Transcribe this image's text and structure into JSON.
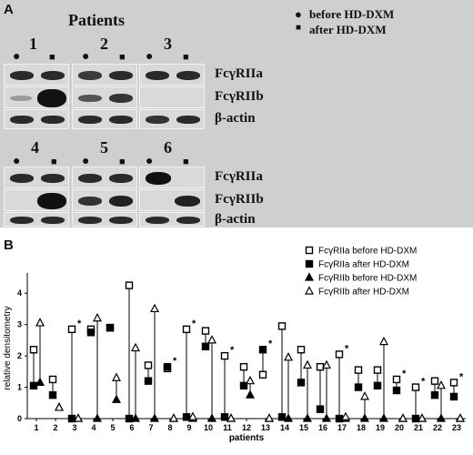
{
  "panelA": {
    "letter": "A",
    "title": "Patients",
    "legend_before": "before HD-DXM",
    "legend_after": "after HD-DXM",
    "groups": [
      "1",
      "2",
      "3",
      "4",
      "5",
      "6"
    ],
    "row_labels_top": [
      "FcγRIIa",
      "FcγRIIb",
      "β-actin"
    ],
    "row_labels_bottom": [
      "FcγRIIa",
      "FcγRIIb",
      "β-actin"
    ]
  },
  "panelB": {
    "letter": "B"
  },
  "chart_data": {
    "type": "scatter",
    "title": "",
    "xlabel": "patients",
    "ylabel": "relative densitometry",
    "categories": [
      "1",
      "2",
      "3",
      "4",
      "5",
      "6",
      "7",
      "8",
      "9",
      "10",
      "11",
      "12",
      "13",
      "14",
      "15",
      "16",
      "17",
      "18",
      "19",
      "20",
      "21",
      "22",
      "23"
    ],
    "ylim": [
      0,
      4.5
    ],
    "yticks": [
      0,
      1,
      2,
      3,
      4
    ],
    "grid": false,
    "legend_position": "top-right",
    "series": [
      {
        "name": "FcγRIIa before HD-DXM",
        "marker": "open-square",
        "values": [
          2.2,
          1.25,
          2.85,
          2.85,
          2.9,
          4.25,
          1.7,
          1.6,
          2.85,
          2.8,
          2.0,
          1.65,
          1.4,
          2.95,
          2.2,
          1.65,
          2.05,
          1.55,
          1.55,
          1.25,
          1.0,
          1.2,
          1.15
        ]
      },
      {
        "name": "FcγRIIa after HD-DXM",
        "marker": "filled-square",
        "values": [
          1.05,
          0.75,
          0.0,
          2.75,
          2.9,
          0.0,
          1.2,
          1.65,
          0.05,
          2.3,
          0.05,
          1.05,
          2.2,
          0.05,
          1.15,
          0.3,
          0.0,
          1.0,
          1.05,
          0.9,
          0.0,
          0.75,
          0.7
        ]
      },
      {
        "name": "FcγRIIb before HD-DXM",
        "marker": "filled-triangle",
        "values": [
          1.15,
          0.35,
          0.0,
          0.0,
          0.6,
          0.0,
          0.0,
          0.0,
          0.0,
          0.0,
          0.0,
          0.75,
          0.0,
          0.0,
          0.0,
          0.0,
          0.0,
          0.0,
          0.0,
          0.0,
          0.0,
          0.0,
          0.0
        ]
      },
      {
        "name": "FcγRIIb after HD-DXM",
        "marker": "open-triangle",
        "values": [
          3.05,
          0.35,
          0.0,
          3.2,
          1.3,
          2.25,
          3.5,
          0.0,
          0.05,
          2.5,
          0.0,
          1.2,
          0.0,
          1.95,
          1.7,
          1.7,
          0.05,
          0.7,
          2.45,
          0.0,
          0.0,
          1.05,
          0.0
        ]
      }
    ],
    "significance_marker": "*",
    "significant_patients": [
      "3",
      "8",
      "9",
      "11",
      "13",
      "17",
      "20",
      "21",
      "23"
    ]
  }
}
